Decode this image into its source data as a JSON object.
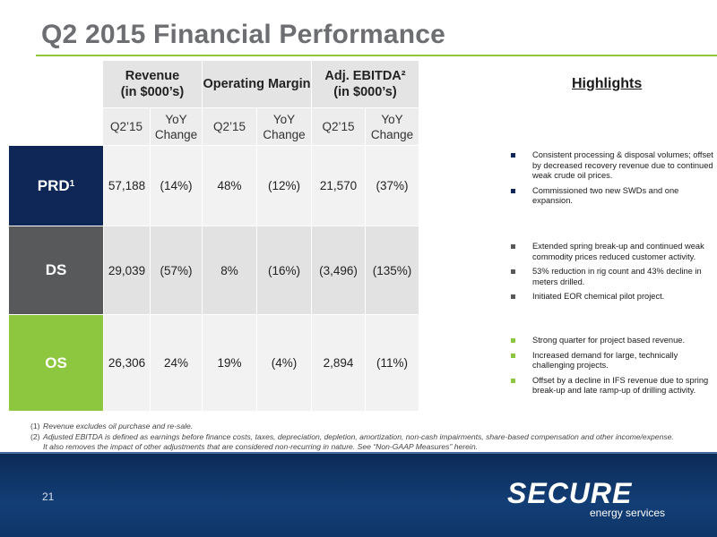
{
  "title": "Q2 2015 Financial Performance",
  "colors": {
    "accent": "#8DC63F",
    "prd": "#0E2756",
    "ds": "#58595B",
    "os": "#8DC63F"
  },
  "table": {
    "groups": [
      "Revenue\n(in $000’s)",
      "Operating Margin",
      "Adj. EBITDA²\n(in $000’s)"
    ],
    "subheaders": [
      "Q2’15",
      "YoY\nChange",
      "Q2’15",
      "YoY\nChange",
      "Q2’15",
      "YoY\nChange"
    ],
    "rows": [
      {
        "segment": "PRD",
        "sup": "1",
        "values": [
          "57,188",
          "(14%)",
          "48%",
          "(12%)",
          "21,570",
          "(37%)"
        ]
      },
      {
        "segment": "DS",
        "sup": "",
        "values": [
          "29,039",
          "(57%)",
          "8%",
          "(16%)",
          "(3,496)",
          "(135%)"
        ]
      },
      {
        "segment": "OS",
        "sup": "",
        "values": [
          "26,306",
          "24%",
          "19%",
          "(4%)",
          "2,894",
          "(11%)"
        ]
      }
    ]
  },
  "highlights": {
    "title": "Highlights",
    "groups": [
      {
        "color": "#0E2756",
        "items": [
          "Consistent processing & disposal volumes; offset by decreased recovery revenue due to continued weak crude oil prices.",
          "Commissioned two new SWDs and one expansion."
        ]
      },
      {
        "color": "#58595B",
        "items": [
          "Extended spring break-up and continued weak commodity prices reduced customer activity.",
          "53% reduction in rig count and 43% decline in meters drilled.",
          "Initiated EOR chemical pilot project."
        ]
      },
      {
        "color": "#8DC63F",
        "items": [
          "Strong quarter for project based revenue.",
          "Increased demand for large, technically challenging projects.",
          "Offset by a decline in IFS revenue due to spring break-up and late ramp-up of drilling activity."
        ]
      }
    ]
  },
  "footnotes": [
    {
      "num": "(1)",
      "text": "Revenue excludes oil purchase and re-sale."
    },
    {
      "num": "(2)",
      "text": "Adjusted EBITDA is defined as earnings before finance costs, taxes, depreciation, depletion, amortization, non-cash impairments, share-based compensation and other income/expense."
    },
    {
      "num": "",
      "text": "It also removes the impact of other adjustments that are considered non-recurring in nature. See “Non-GAAP Measures” herein."
    }
  ],
  "footer": {
    "page_number": "21",
    "logo_text": "SECURE",
    "logo_sub": "energy services"
  }
}
